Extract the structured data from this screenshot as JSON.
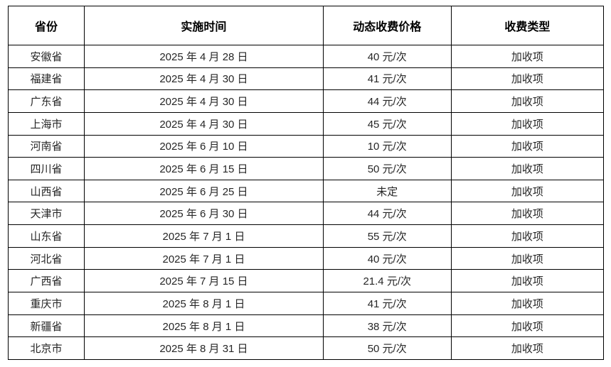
{
  "table": {
    "name": "dynamic-fee-schedule-table",
    "columns": [
      {
        "key": "province",
        "label": "省份"
      },
      {
        "key": "date",
        "label": "实施时间"
      },
      {
        "key": "price",
        "label": "动态收费价格"
      },
      {
        "key": "type",
        "label": "收费类型"
      }
    ],
    "rows": [
      {
        "province": "安徽省",
        "date": "2025 年 4 月 28 日",
        "price": "40 元/次",
        "type": "加收项"
      },
      {
        "province": "福建省",
        "date": "2025 年 4 月 30 日",
        "price": "41 元/次",
        "type": "加收项"
      },
      {
        "province": "广东省",
        "date": "2025 年 4 月 30 日",
        "price": "44 元/次",
        "type": "加收项"
      },
      {
        "province": "上海市",
        "date": "2025 年 4 月 30 日",
        "price": "45 元/次",
        "type": "加收项"
      },
      {
        "province": "河南省",
        "date": "2025 年 6 月 10 日",
        "price": "10 元/次",
        "type": "加收项"
      },
      {
        "province": "四川省",
        "date": "2025 年 6 月 15 日",
        "price": "50 元/次",
        "type": "加收项"
      },
      {
        "province": "山西省",
        "date": "2025 年 6 月 25 日",
        "price": "未定",
        "type": "加收项"
      },
      {
        "province": "天津市",
        "date": "2025 年 6 月 30 日",
        "price": "44 元/次",
        "type": "加收项"
      },
      {
        "province": "山东省",
        "date": "2025 年 7 月 1 日",
        "price": "55 元/次",
        "type": "加收项"
      },
      {
        "province": "河北省",
        "date": "2025 年 7 月 1 日",
        "price": "40 元/次",
        "type": "加收项"
      },
      {
        "province": "广西省",
        "date": "2025 年 7 月 15 日",
        "price": "21.4 元/次",
        "type": "加收项"
      },
      {
        "province": "重庆市",
        "date": "2025 年 8 月 1 日",
        "price": "41 元/次",
        "type": "加收项"
      },
      {
        "province": "新疆省",
        "date": "2025 年 8 月 1 日",
        "price": "38 元/次",
        "type": "加收项"
      },
      {
        "province": "北京市",
        "date": "2025 年 8 月 31 日",
        "price": "50 元/次",
        "type": "加收项"
      }
    ],
    "colors": {
      "border": "#000000",
      "header_text": "#000000",
      "cell_text": "#262626",
      "background": "#ffffff"
    }
  }
}
